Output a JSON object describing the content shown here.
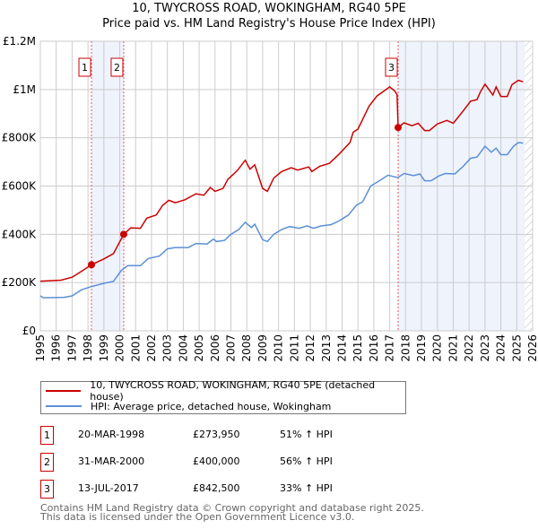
{
  "chart_data": {
    "type": "line",
    "title": "10, TWYCROSS ROAD, WOKINGHAM, RG40 5PE",
    "subtitle": "Price paid vs. HM Land Registry's House Price Index (HPI)",
    "xlim": [
      1995,
      2026
    ],
    "ylim": [
      0,
      1200000
    ],
    "x_ticks": [
      "1995",
      "1996",
      "1997",
      "1998",
      "1999",
      "2000",
      "2001",
      "2002",
      "2003",
      "2004",
      "2005",
      "2006",
      "2007",
      "2008",
      "2009",
      "2010",
      "2011",
      "2012",
      "2013",
      "2014",
      "2015",
      "2016",
      "2017",
      "2018",
      "2019",
      "2020",
      "2021",
      "2022",
      "2023",
      "2024",
      "2025",
      "2026"
    ],
    "y_ticks": [
      {
        "v": 0,
        "label": "£0"
      },
      {
        "v": 200000,
        "label": "£200K"
      },
      {
        "v": 400000,
        "label": "£400K"
      },
      {
        "v": 600000,
        "label": "£600K"
      },
      {
        "v": 800000,
        "label": "£800K"
      },
      {
        "v": 1000000,
        "label": "£1M"
      },
      {
        "v": 1200000,
        "label": "£1.2M"
      }
    ],
    "grid": true,
    "shaded_ranges": [
      [
        1998.22,
        2000.25
      ],
      [
        2017.53,
        2025.5
      ]
    ],
    "hatched_from": 2025.5,
    "series": [
      {
        "name": "10, TWYCROSS ROAD, WOKINGHAM, RG40 5PE (detached house)",
        "color": "#cc0000",
        "x": [
          1995.0,
          1996.3,
          1997,
          1997.6,
          1998.22,
          1999,
          1999.6,
          2000.25,
          2000.7,
          2001.3,
          2001.7,
          2002.3,
          2002.7,
          2003.1,
          2003.5,
          2004.1,
          2004.8,
          2005.3,
          2005.7,
          2006,
          2006.5,
          2006.8,
          2007.4,
          2007.9,
          2008.2,
          2008.5,
          2009,
          2009.3,
          2009.7,
          2010.2,
          2010.8,
          2011.2,
          2011.9,
          2012.1,
          2012.6,
          2013.2,
          2013.8,
          2014.5,
          2014.7,
          2015,
          2015.7,
          2016.2,
          2017.0,
          2017.3,
          2017.46,
          2017.53,
          2017.9,
          2018.4,
          2018.8,
          2019.2,
          2019.5,
          2020,
          2020.6,
          2021,
          2021.6,
          2022.1,
          2022.5,
          2022.7,
          2023.0,
          2023.5,
          2023.7,
          2024,
          2024.4,
          2024.7,
          2025.1,
          2025.4
        ],
        "values": [
          206000,
          210000,
          222000,
          247000,
          273950,
          298000,
          320000,
          400000,
          427000,
          425000,
          467000,
          480000,
          520000,
          541000,
          531000,
          543000,
          568000,
          562000,
          594000,
          578000,
          590000,
          627000,
          664000,
          707000,
          670000,
          688000,
          590000,
          578000,
          633000,
          660000,
          676000,
          666000,
          679000,
          660000,
          682000,
          694000,
          731000,
          780000,
          823000,
          836000,
          931000,
          973000,
          1011000,
          995000,
          980000,
          842500,
          862000,
          850000,
          860000,
          830000,
          830000,
          857000,
          872000,
          860000,
          909000,
          952000,
          958000,
          989000,
          1022000,
          977000,
          1011000,
          971000,
          971000,
          1020000,
          1038000,
          1032000
        ]
      },
      {
        "name": "HPI: Average price, detached house, Wokingham",
        "color": "#5b8fd6",
        "x": [
          1995.0,
          1995.2,
          1996.5,
          1997,
          1997.6,
          1998.2,
          1999,
          1999.6,
          2000.1,
          2000.5,
          2001.3,
          2001.8,
          2002.5,
          2003,
          2003.5,
          2004.3,
          2004.8,
          2005.5,
          2005.9,
          2006.1,
          2006.6,
          2007,
          2007.5,
          2007.9,
          2008.3,
          2008.5,
          2009,
          2009.3,
          2009.7,
          2010.2,
          2010.7,
          2011.3,
          2011.8,
          2012.2,
          2012.7,
          2013.3,
          2013.8,
          2014.4,
          2014.9,
          2015.3,
          2015.8,
          2016.3,
          2016.9,
          2017.5,
          2017.9,
          2018.5,
          2018.9,
          2019.2,
          2019.6,
          2020.1,
          2020.5,
          2021.1,
          2021.6,
          2022.1,
          2022.5,
          2023.0,
          2023.4,
          2023.7,
          2024,
          2024.4,
          2024.8,
          2025.1,
          2025.4
        ],
        "values": [
          145000,
          137000,
          139000,
          145000,
          170000,
          183000,
          197000,
          205000,
          250000,
          270000,
          270000,
          300000,
          310000,
          340000,
          345000,
          345000,
          362000,
          360000,
          380000,
          370000,
          375000,
          400000,
          420000,
          450000,
          428000,
          442000,
          378000,
          370000,
          400000,
          420000,
          432000,
          425000,
          435000,
          425000,
          435000,
          440000,
          455000,
          480000,
          520000,
          535000,
          600000,
          620000,
          645000,
          635000,
          652000,
          643000,
          650000,
          622000,
          622000,
          642000,
          652000,
          650000,
          680000,
          715000,
          720000,
          765000,
          740000,
          757000,
          730000,
          730000,
          765000,
          780000,
          778000
        ]
      }
    ],
    "sales": [
      {
        "num": "1",
        "date": "20-MAR-1998",
        "price": "£273,950",
        "hpi": "51% ↑ HPI",
        "x": 1998.22,
        "value": 273950
      },
      {
        "num": "2",
        "date": "31-MAR-2000",
        "price": "£400,000",
        "hpi": "56% ↑ HPI",
        "x": 2000.25,
        "value": 400000
      },
      {
        "num": "3",
        "date": "13-JUL-2017",
        "price": "£842,500",
        "hpi": "33% ↑ HPI",
        "x": 2017.53,
        "value": 842500
      }
    ]
  },
  "legend": {
    "property": "10, TWYCROSS ROAD, WOKINGHAM, RG40 5PE (detached house)",
    "hpi": "HPI: Average price, detached house, Wokingham"
  },
  "footer": {
    "line1": "Contains HM Land Registry data © Crown copyright and database right 2025.",
    "line2": "This data is licensed under the Open Government Licence v3.0."
  }
}
